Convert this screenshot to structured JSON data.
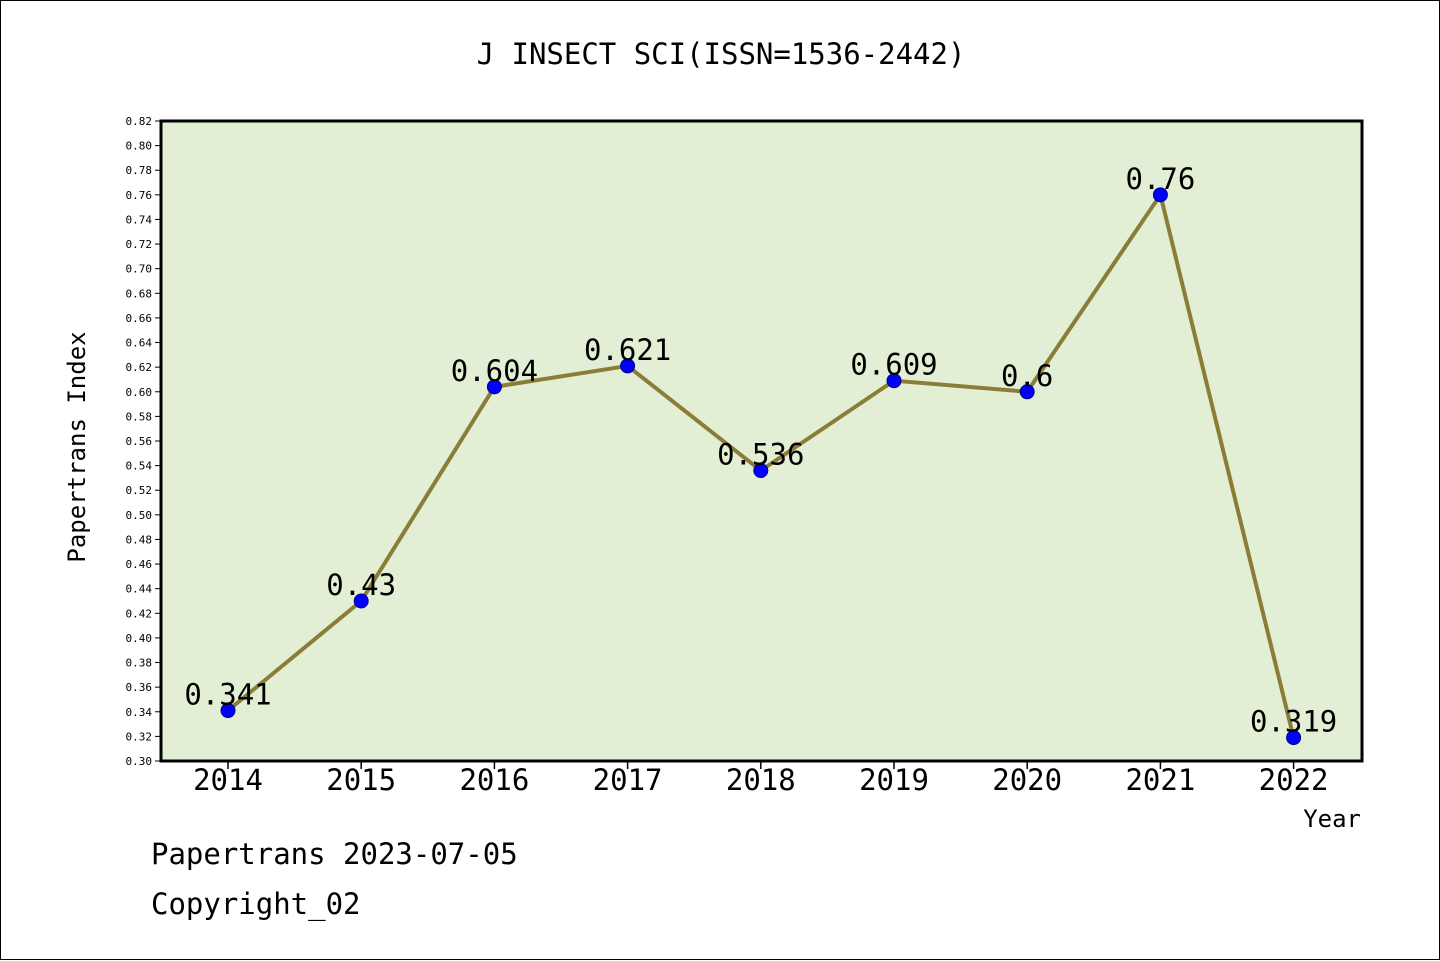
{
  "title": "J INSECT SCI(ISSN=1536-2442)",
  "footer": {
    "line1": "Papertrans 2023-07-05",
    "line2": "Copyright_02"
  },
  "chart_data": {
    "type": "line",
    "title": "J INSECT SCI(ISSN=1536-2442)",
    "xlabel": "Year",
    "ylabel": "Papertrans Index",
    "categories": [
      "2014",
      "2015",
      "2016",
      "2017",
      "2018",
      "2019",
      "2020",
      "2021",
      "2022"
    ],
    "series": [
      {
        "values": [
          0.341,
          0.43,
          0.604,
          0.621,
          0.536,
          0.609,
          0.6,
          0.76,
          0.319
        ],
        "labels": [
          "0.341",
          "0.43",
          "0.604",
          "0.621",
          "0.536",
          "0.609",
          "0.6",
          "0.76",
          "0.319"
        ]
      }
    ],
    "ylim": [
      0.3,
      0.82
    ],
    "ytick_step": 0.02,
    "grid": false,
    "colors": {
      "plot_background": "#e2efd4",
      "line": "#8b7d38",
      "marker": "#0000ff"
    }
  }
}
